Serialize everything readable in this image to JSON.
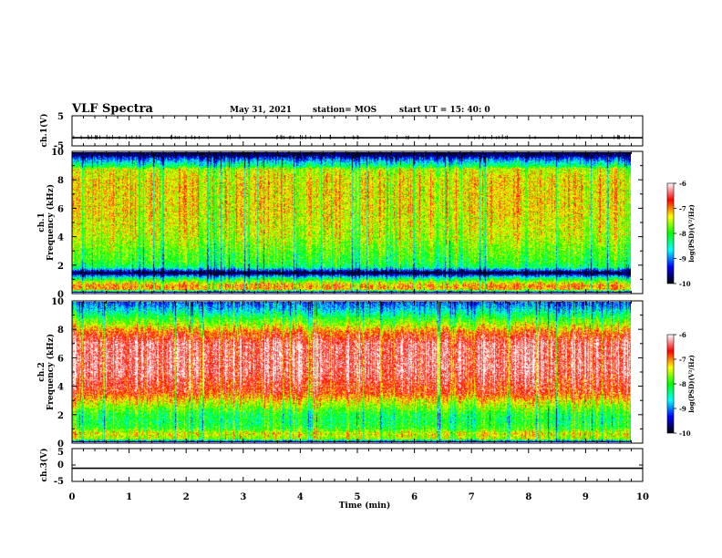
{
  "header": {
    "title": "VLF Spectra",
    "date": "May 31, 2021",
    "station": "station= MOS",
    "start": "start  UT  =   15: 40: 0"
  },
  "chart_data": [
    {
      "type": "line",
      "name": "ch.1(V)",
      "ylabel": "ch.1(V)",
      "ylim": [
        -5,
        5
      ],
      "yticks": [
        "5",
        "-5"
      ],
      "x": [
        0,
        10
      ],
      "values": [
        -2.3,
        -2.3
      ]
    },
    {
      "type": "heatmap",
      "name": "ch.1",
      "ylabel": [
        "ch.1",
        "Frequency (kHz)"
      ],
      "ylim": [
        0,
        10
      ],
      "yticks": [
        "0",
        "2",
        "4",
        "6",
        "8",
        "10"
      ],
      "xlim": [
        0,
        9.8
      ],
      "colorbar": {
        "label": "log(PSD)(V²/Hz)",
        "range": [
          -10,
          -6
        ],
        "ticks": [
          "-6",
          "-7",
          "-8",
          "-9",
          "-10"
        ],
        "colors": [
          "#000000",
          "#0000ff",
          "#00ffff",
          "#00ff00",
          "#ffff00",
          "#ff0000",
          "#ffffff"
        ]
      },
      "freq_profile": {
        "freq_khz": [
          0,
          0.2,
          0.5,
          0.8,
          1.1,
          1.4,
          1.6,
          1.8,
          2.2,
          2.6,
          3.0,
          4.0,
          6.0,
          8.0,
          8.8,
          9.0,
          9.3,
          9.6,
          9.8,
          10.0
        ],
        "log_psd": [
          -10,
          -7.2,
          -7.0,
          -7.6,
          -8.6,
          -10,
          -9.2,
          -8.3,
          -8.0,
          -7.9,
          -7.8,
          -7.5,
          -7.3,
          -7.3,
          -7.5,
          -8.2,
          -8.7,
          -9.3,
          -9.8,
          -9.8
        ]
      }
    },
    {
      "type": "heatmap",
      "name": "ch.2",
      "ylabel": [
        "ch.2",
        "Frequency (kHz)"
      ],
      "ylim": [
        0,
        10
      ],
      "yticks": [
        "0",
        "2",
        "4",
        "6",
        "8",
        "10"
      ],
      "xlim": [
        0,
        9.8
      ],
      "colorbar": {
        "label": "log(PSD)(V²/Hz)",
        "range": [
          -10,
          -6
        ],
        "ticks": [
          "-6",
          "-7",
          "-8",
          "-9",
          "-10"
        ],
        "colors": [
          "#000000",
          "#0000ff",
          "#00ffff",
          "#00ff00",
          "#ffff00",
          "#ff0000",
          "#ffffff"
        ]
      },
      "freq_profile": {
        "freq_khz": [
          0,
          0.2,
          0.6,
          1.0,
          1.5,
          2.0,
          2.5,
          3.0,
          3.5,
          5.0,
          7.0,
          7.8,
          8.3,
          8.8,
          9.3,
          9.7,
          10.0
        ],
        "log_psd": [
          -10,
          -7.6,
          -7.3,
          -7.9,
          -8.1,
          -8.0,
          -7.6,
          -7.2,
          -6.7,
          -6.3,
          -6.3,
          -6.8,
          -7.4,
          -7.9,
          -8.5,
          -8.9,
          -9.1
        ]
      }
    },
    {
      "type": "line",
      "name": "ch.3(V)",
      "ylabel": "ch.3(V)",
      "ylim": [
        -5,
        5
      ],
      "yticks": [
        "5",
        "0",
        "-5"
      ],
      "x": [
        0,
        10
      ],
      "values": [
        -1.0,
        -1.0
      ]
    }
  ],
  "xaxis": {
    "label": "Time (min)",
    "ticks": [
      "0",
      "1",
      "2",
      "3",
      "4",
      "5",
      "6",
      "7",
      "8",
      "9",
      "10"
    ],
    "xlim": [
      0,
      10
    ]
  }
}
